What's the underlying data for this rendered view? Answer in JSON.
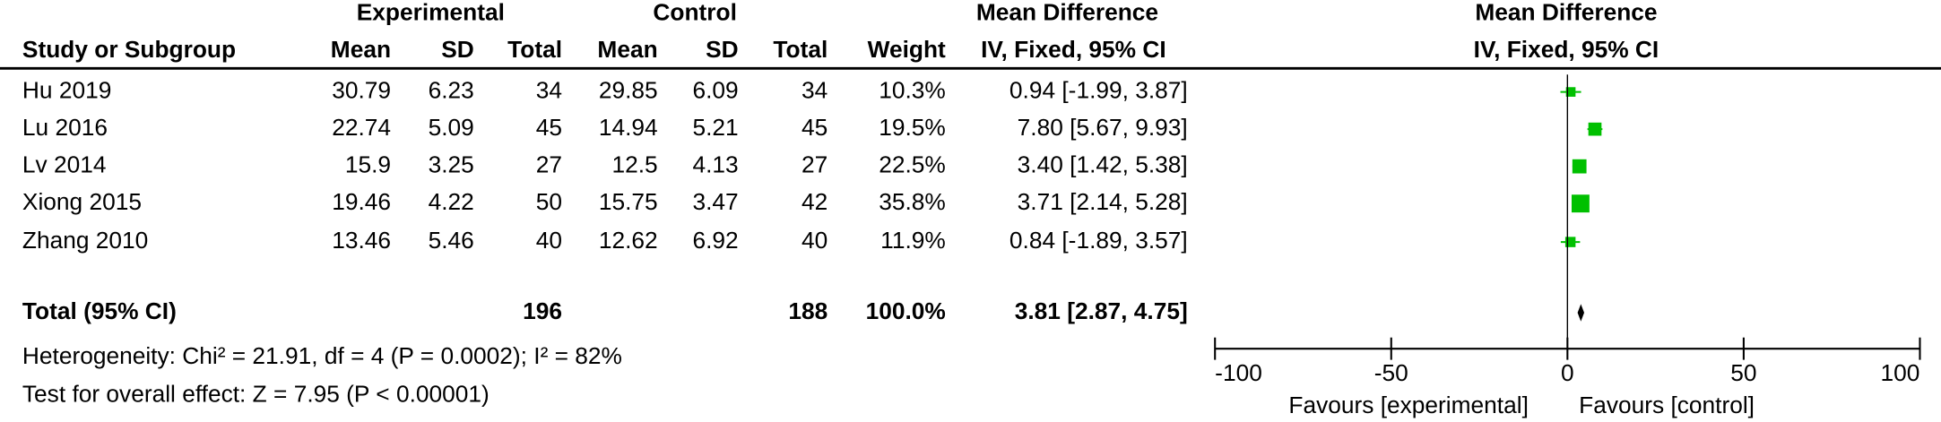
{
  "chart_data": {
    "type": "forest",
    "group_headers": [
      "Experimental",
      "Control",
      "Mean Difference",
      "Mean Difference"
    ],
    "columns": [
      "Study or Subgroup",
      "Mean",
      "SD",
      "Total",
      "Mean",
      "SD",
      "Total",
      "Weight",
      "IV, Fixed, 95% CI",
      "IV, Fixed, 95% CI"
    ],
    "studies": [
      {
        "name": "Hu 2019",
        "exp_mean": 30.79,
        "exp_sd": 6.23,
        "exp_total": 34,
        "ctl_mean": 29.85,
        "ctl_sd": 6.09,
        "ctl_total": 34,
        "weight": 10.3,
        "weight_label": "10.3%",
        "md": 0.94,
        "ci": [
          -1.99,
          3.87
        ],
        "md_label": "0.94 [-1.99, 3.87]"
      },
      {
        "name": "Lu 2016",
        "exp_mean": 22.74,
        "exp_sd": 5.09,
        "exp_total": 45,
        "ctl_mean": 14.94,
        "ctl_sd": 5.21,
        "ctl_total": 45,
        "weight": 19.5,
        "weight_label": "19.5%",
        "md": 7.8,
        "ci": [
          5.67,
          9.93
        ],
        "md_label": "7.80 [5.67, 9.93]"
      },
      {
        "name": "Lv 2014",
        "exp_mean": 15.9,
        "exp_sd": 3.25,
        "exp_total": 27,
        "ctl_mean": 12.5,
        "ctl_sd": 4.13,
        "ctl_total": 27,
        "weight": 22.5,
        "weight_label": "22.5%",
        "md": 3.4,
        "ci": [
          1.42,
          5.38
        ],
        "md_label": "3.40 [1.42, 5.38]"
      },
      {
        "name": "Xiong 2015",
        "exp_mean": 19.46,
        "exp_sd": 4.22,
        "exp_total": 50,
        "ctl_mean": 15.75,
        "ctl_sd": 3.47,
        "ctl_total": 42,
        "weight": 35.8,
        "weight_label": "35.8%",
        "md": 3.71,
        "ci": [
          2.14,
          5.28
        ],
        "md_label": "3.71 [2.14, 5.28]"
      },
      {
        "name": "Zhang 2010",
        "exp_mean": 13.46,
        "exp_sd": 5.46,
        "exp_total": 40,
        "ctl_mean": 12.62,
        "ctl_sd": 6.92,
        "ctl_total": 40,
        "weight": 11.9,
        "weight_label": "11.9%",
        "md": 0.84,
        "ci": [
          -1.89,
          3.57
        ],
        "md_label": "0.84 [-1.89, 3.57]"
      }
    ],
    "total": {
      "name": "Total (95% CI)",
      "exp_total": 196,
      "ctl_total": 188,
      "weight": 100,
      "weight_label": "100.0%",
      "md": 3.81,
      "ci": [
        2.87,
        4.75
      ],
      "md_label": "3.81 [2.87, 4.75]"
    },
    "heterogeneity": "Heterogeneity: Chi² = 21.91, df = 4 (P = 0.0002); I² = 82%",
    "overall_effect": "Test for overall effect: Z = 7.95 (P < 0.00001)",
    "favours": [
      "Favours [experimental]",
      "Favours [control]"
    ],
    "xlim": [
      -100,
      100
    ],
    "xticks": [
      -100,
      -50,
      0,
      50,
      100
    ],
    "color": "#00c000"
  }
}
